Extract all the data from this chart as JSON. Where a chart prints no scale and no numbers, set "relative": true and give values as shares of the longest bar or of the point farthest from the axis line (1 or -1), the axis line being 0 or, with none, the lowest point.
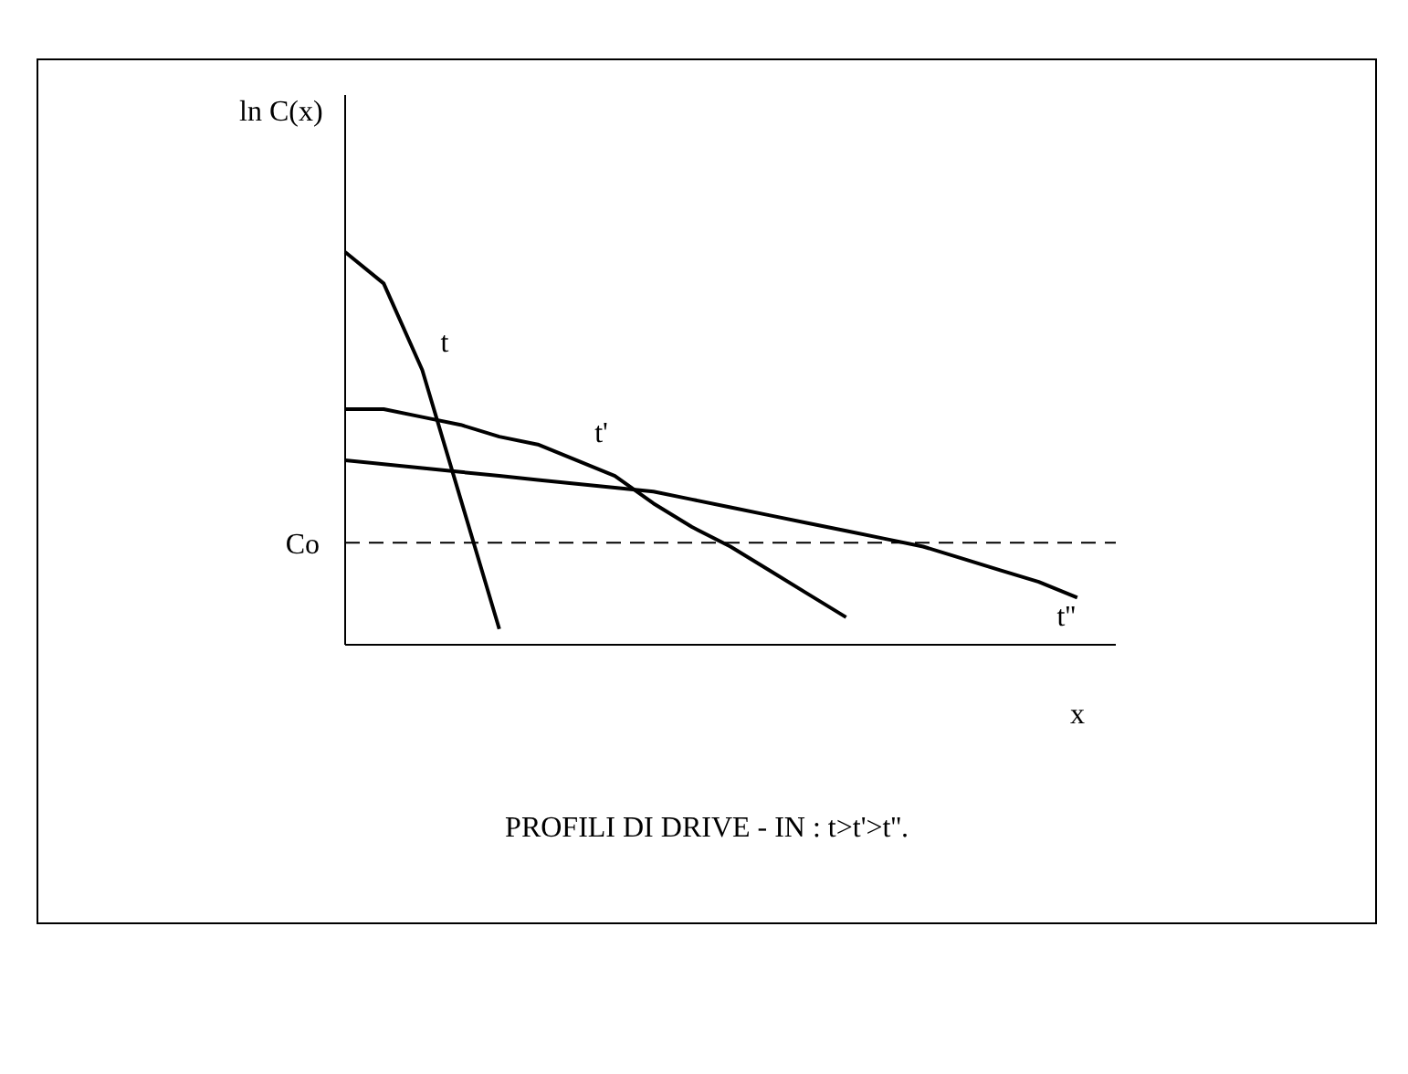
{
  "chart_data": {
    "type": "line",
    "title": "PROFILI DI DRIVE - IN : t>t'>t''.",
    "xlabel": "x",
    "ylabel": "ln C(x)",
    "relative": true,
    "marker": "none",
    "line_style": "solid",
    "categories": [
      null,
      null,
      null,
      null,
      null,
      null,
      null,
      null,
      null,
      null,
      null,
      null,
      null,
      null,
      null,
      null,
      null,
      null,
      null,
      null,
      null
    ],
    "series": [
      {
        "name": "t",
        "color": "#000000",
        "values": [
          1,
          0.92,
          0.7,
          0.37,
          0.04,
          null,
          null,
          null,
          null,
          null,
          null,
          null,
          null,
          null,
          null,
          null,
          null,
          null,
          null,
          null,
          null
        ]
      },
      {
        "name": "t'",
        "color": "#000000",
        "values": [
          0.6,
          0.6,
          0.58,
          0.56,
          0.53,
          0.51,
          0.47,
          0.43,
          0.36,
          0.3,
          0.25,
          0.19,
          0.13,
          0.07,
          null,
          null,
          null,
          null,
          null,
          null,
          null
        ]
      },
      {
        "name": "t''",
        "color": "#000000",
        "values": [
          0.47,
          0.46,
          0.45,
          0.44,
          0.43,
          0.42,
          0.41,
          0.4,
          0.39,
          0.37,
          0.35,
          0.33,
          0.31,
          0.29,
          0.27,
          0.25,
          0.22,
          0.19,
          0.16,
          0.12,
          null
        ]
      }
    ],
    "ref_lines": [
      {
        "axis": "y",
        "value": 0.26,
        "label": "Co",
        "line_style": "dashed",
        "color": "#000000"
      }
    ]
  }
}
